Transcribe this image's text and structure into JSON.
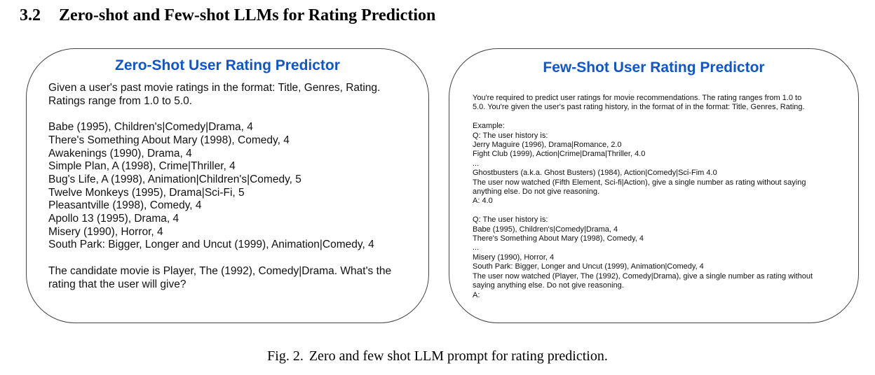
{
  "heading": {
    "number": "3.2",
    "title": "Zero-shot and Few-shot LLMs for Rating Prediction"
  },
  "zero_shot": {
    "title": "Zero-Shot User Rating Predictor",
    "lines": [
      "Given a user's past movie ratings in the format: Title, Genres, Rating.",
      "Ratings range from 1.0 to 5.0.",
      "",
      "Babe (1995), Children's|Comedy|Drama, 4",
      "There's Something About Mary (1998), Comedy, 4",
      "Awakenings (1990), Drama, 4",
      "Simple Plan, A (1998), Crime|Thriller, 4",
      "Bug's Life, A (1998), Animation|Children's|Comedy, 5",
      "Twelve Monkeys (1995), Drama|Sci-Fi, 5",
      "Pleasantville (1998), Comedy, 4",
      "Apollo 13 (1995), Drama, 4",
      "Misery (1990), Horror, 4",
      "South Park: Bigger, Longer and Uncut (1999), Animation|Comedy, 4",
      "",
      "The candidate movie is Player, The (1992), Comedy|Drama. What's the",
      "rating that the user will give?"
    ]
  },
  "few_shot": {
    "title": "Few-Shot User Rating Predictor",
    "lines": [
      "You're required to predict user ratings for movie recommendations. The rating ranges from 1.0 to",
      "5.0. You're given the user's past rating history, in the format of in the format: Title, Genres, Rating.",
      "",
      "Example:",
      "Q: The user history is:",
      "Jerry Maguire (1996), Drama|Romance, 2.0",
      "Fight Club (1999), Action|Crime|Drama|Thriller, 4.0",
      "...",
      "Ghostbusters (a.k.a. Ghost Busters) (1984), Action|Comedy|Sci-Fim 4.0",
      "The user now watched (Fifth Element, Sci-fi|Action), give a single number as rating without saying",
      "anything else. Do not give reasoning.",
      "A: 4.0",
      "",
      "Q: The user history is:",
      "Babe (1995), Children's|Comedy|Drama, 4",
      "There's Something About Mary (1998), Comedy, 4",
      "...",
      "Misery (1990), Horror, 4",
      "South Park: Bigger, Longer and Uncut (1999), Animation|Comedy, 4",
      "The user now watched (Player, The (1992), Comedy|Drama), give a single number as rating without",
      "saying anything else. Do not give reasoning.",
      "A:"
    ]
  },
  "caption": {
    "label": "Fig. 2.",
    "text": "Zero and few shot LLM prompt for rating prediction."
  },
  "colors": {
    "title_blue": "#1155cc",
    "border": "#444444"
  }
}
